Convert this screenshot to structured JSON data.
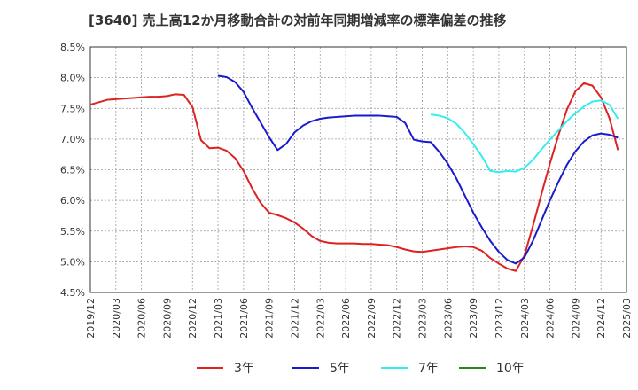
{
  "chart_data": {
    "type": "line",
    "title": "[3640]  売上高12か月移動合計の対前年同期増減率の標準偏差の推移",
    "xlabel": "",
    "ylabel": "",
    "ylim": [
      4.5,
      8.5
    ],
    "y_ticks": [
      "8.5%",
      "8.0%",
      "7.5%",
      "7.0%",
      "6.5%",
      "6.0%",
      "5.5%",
      "5.0%",
      "4.5%"
    ],
    "y_tick_values": [
      8.5,
      8.0,
      7.5,
      7.0,
      6.5,
      6.0,
      5.5,
      5.0,
      4.5
    ],
    "x_ticks": [
      "2019/12",
      "2020/03",
      "2020/06",
      "2020/09",
      "2020/12",
      "2021/03",
      "2021/06",
      "2021/09",
      "2021/12",
      "2022/03",
      "2022/06",
      "2022/09",
      "2022/12",
      "2023/03",
      "2023/06",
      "2023/09",
      "2023/12",
      "2024/03",
      "2024/06",
      "2024/09",
      "2024/12",
      "2025/03"
    ],
    "grid": true,
    "legend_position": "bottom",
    "series": [
      {
        "name": "3年",
        "color": "#dd2222",
        "start": "2019/12",
        "values": [
          7.56,
          7.6,
          7.64,
          7.65,
          7.66,
          7.67,
          7.68,
          7.69,
          7.69,
          7.7,
          7.73,
          7.72,
          7.52,
          6.98,
          6.85,
          6.86,
          6.81,
          6.69,
          6.48,
          6.2,
          5.96,
          5.8,
          5.76,
          5.71,
          5.64,
          5.54,
          5.42,
          5.34,
          5.31,
          5.3,
          5.3,
          5.3,
          5.29,
          5.29,
          5.28,
          5.27,
          5.24,
          5.2,
          5.17,
          5.16,
          5.18,
          5.2,
          5.22,
          5.24,
          5.25,
          5.24,
          5.18,
          5.06,
          4.97,
          4.89,
          4.85,
          5.1,
          5.58,
          6.1,
          6.6,
          7.06,
          7.48,
          7.78,
          7.91,
          7.87,
          7.68,
          7.34,
          6.82
        ]
      },
      {
        "name": "5年",
        "color": "#1a1acc",
        "start": "2019/12",
        "values": [
          null,
          null,
          null,
          null,
          null,
          null,
          null,
          null,
          null,
          null,
          null,
          null,
          null,
          null,
          null,
          8.03,
          8.01,
          7.93,
          7.77,
          7.51,
          7.27,
          7.03,
          6.82,
          6.92,
          7.11,
          7.22,
          7.29,
          7.33,
          7.35,
          7.36,
          7.37,
          7.38,
          7.38,
          7.38,
          7.38,
          7.37,
          7.36,
          7.26,
          6.99,
          6.96,
          6.95,
          6.79,
          6.6,
          6.36,
          6.08,
          5.8,
          5.56,
          5.34,
          5.16,
          5.03,
          4.97,
          5.07,
          5.34,
          5.67,
          6.0,
          6.3,
          6.58,
          6.8,
          6.96,
          7.06,
          7.09,
          7.07,
          7.02
        ]
      },
      {
        "name": "7年",
        "color": "#33eeee",
        "start": "2019/12",
        "values": [
          null,
          null,
          null,
          null,
          null,
          null,
          null,
          null,
          null,
          null,
          null,
          null,
          null,
          null,
          null,
          null,
          null,
          null,
          null,
          null,
          null,
          null,
          null,
          null,
          null,
          null,
          null,
          null,
          null,
          null,
          null,
          null,
          null,
          null,
          null,
          null,
          null,
          null,
          null,
          null,
          7.4,
          7.38,
          7.34,
          7.25,
          7.1,
          6.92,
          6.72,
          6.48,
          6.46,
          6.48,
          6.47,
          6.53,
          6.66,
          6.83,
          6.99,
          7.14,
          7.29,
          7.42,
          7.53,
          7.61,
          7.63,
          7.56,
          7.33
        ]
      },
      {
        "name": "10年",
        "color": "#228822",
        "start": "2019/12",
        "values": []
      }
    ]
  }
}
